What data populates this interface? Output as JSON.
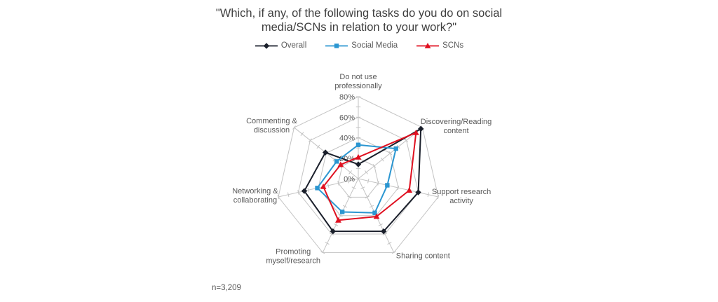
{
  "page": {
    "footnote": "n=3,209"
  },
  "chart_data": {
    "type": "radar",
    "title": "\"Which, if any, of the following tasks do you do on social media/SCNs in relation to your work?\"",
    "axis_min": 0,
    "axis_max": 80,
    "unit": "%",
    "grid_levels": [
      20,
      40,
      60,
      80
    ],
    "minor_tick_step": 10,
    "grid_on": true,
    "legend_position": "top",
    "ticks": [
      {
        "value": 0,
        "label": "0%"
      },
      {
        "value": 20,
        "label": "20%"
      },
      {
        "value": 40,
        "label": "40%"
      },
      {
        "value": 60,
        "label": "60%"
      },
      {
        "value": 80,
        "label": "80%"
      }
    ],
    "axes": [
      {
        "label": "Do not use professionally",
        "lines": [
          "Do not use",
          "professionally"
        ],
        "anchor": "middle",
        "label_offset": [
          0,
          -25
        ]
      },
      {
        "label": "Discovering/Reading content",
        "lines": [
          "Discovering/Reading",
          "content"
        ],
        "anchor": "middle",
        "label_offset": [
          48,
          -5
        ]
      },
      {
        "label": "Support research activity",
        "lines": [
          "Support research",
          "activity"
        ],
        "anchor": "middle",
        "label_offset": [
          33,
          -4
        ]
      },
      {
        "label": "Sharing content",
        "lines": [
          "Sharing content"
        ],
        "anchor": "start",
        "label_offset": [
          3,
          8
        ]
      },
      {
        "label": "Promoting myself/research",
        "lines": [
          "Promoting",
          "myself/research"
        ],
        "anchor": "middle",
        "label_offset": [
          -42,
          2
        ]
      },
      {
        "label": "Networking & collaborating",
        "lines": [
          "Networking &",
          "collaborating"
        ],
        "anchor": "middle",
        "label_offset": [
          -33,
          -5
        ]
      },
      {
        "label": "Commenting & discussion",
        "lines": [
          "Commenting &",
          "discussion"
        ],
        "anchor": "middle",
        "label_offset": [
          -32,
          -6
        ]
      }
    ],
    "series": [
      {
        "name": "Overall",
        "color": "#1a1f2b",
        "marker": "diamond",
        "values": [
          14,
          78,
          60,
          57,
          57,
          54,
          41
        ]
      },
      {
        "name": "Social Media",
        "color": "#2b96d1",
        "marker": "square",
        "values": [
          33,
          47,
          29,
          37,
          36,
          41,
          27
        ]
      },
      {
        "name": "SCNs",
        "color": "#e01020",
        "marker": "triangle",
        "values": [
          21,
          72,
          51,
          41,
          45,
          35,
          22
        ]
      }
    ],
    "grid_color": "#c3c3c3",
    "label_color": "#595959",
    "title_color": "#3f3f3f",
    "footnote": "n=3,209"
  }
}
